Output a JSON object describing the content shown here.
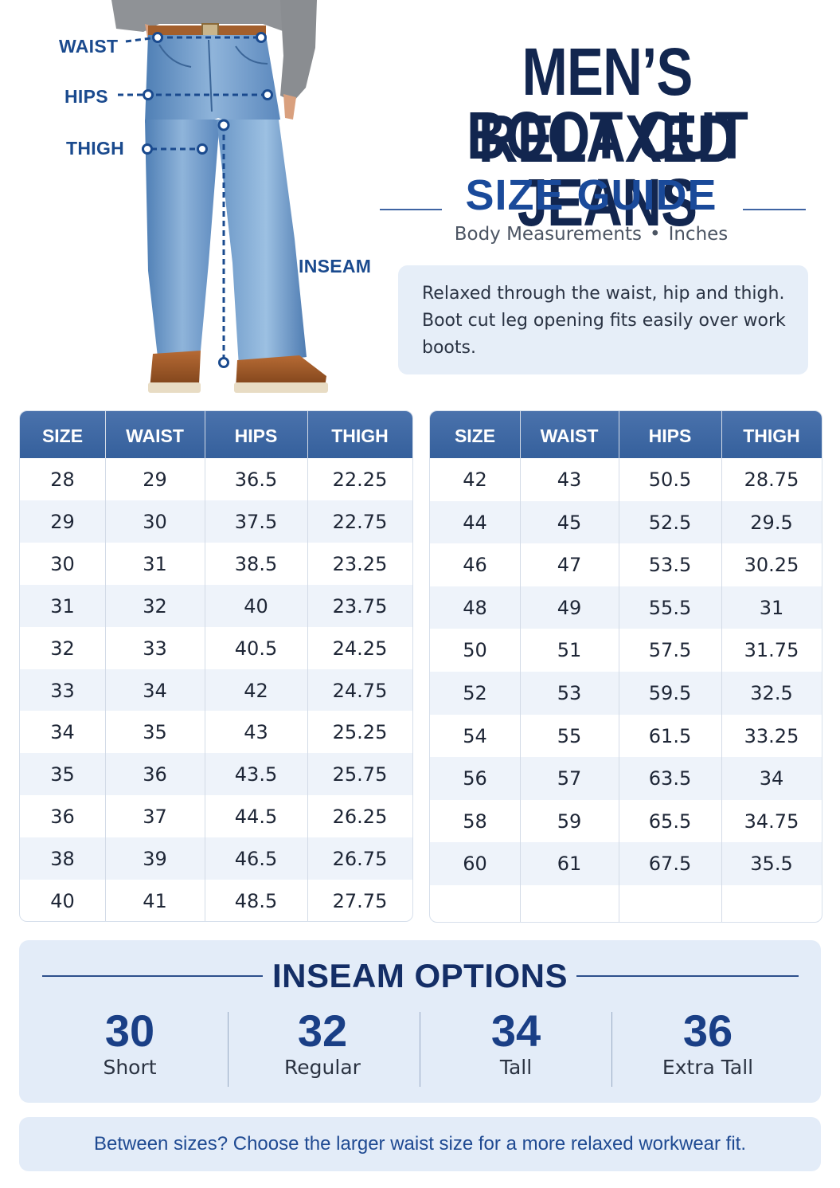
{
  "measure_labels": {
    "waist": "WAIST",
    "hips": "HIPS",
    "thigh": "THIGH",
    "inseam": "INSEAM"
  },
  "title": {
    "line1": "MEN’S RELAXED",
    "line2": "BOOT CUT JEANS",
    "subtitle": "SIZE GUIDE",
    "units_left": "Body Measurements",
    "units_sep": "•",
    "units_right": "Inches"
  },
  "note": "Relaxed through the waist, hip and thigh. Boot cut leg opening fits easily over work boots.",
  "table_headers": [
    "SIZE",
    "WAIST",
    "HIPS",
    "THIGH"
  ],
  "table_left": [
    [
      "28",
      "29",
      "36.5",
      "22.25"
    ],
    [
      "29",
      "30",
      "37.5",
      "22.75"
    ],
    [
      "30",
      "31",
      "38.5",
      "23.25"
    ],
    [
      "31",
      "32",
      "40",
      "23.75"
    ],
    [
      "32",
      "33",
      "40.5",
      "24.25"
    ],
    [
      "33",
      "34",
      "42",
      "24.75"
    ],
    [
      "34",
      "35",
      "43",
      "25.25"
    ],
    [
      "35",
      "36",
      "43.5",
      "25.75"
    ],
    [
      "36",
      "37",
      "44.5",
      "26.25"
    ],
    [
      "38",
      "39",
      "46.5",
      "26.75"
    ],
    [
      "40",
      "41",
      "48.5",
      "27.75"
    ]
  ],
  "table_right": [
    [
      "42",
      "43",
      "50.5",
      "28.75"
    ],
    [
      "44",
      "45",
      "52.5",
      "29.5"
    ],
    [
      "46",
      "47",
      "53.5",
      "30.25"
    ],
    [
      "48",
      "49",
      "55.5",
      "31"
    ],
    [
      "50",
      "51",
      "57.5",
      "31.75"
    ],
    [
      "52",
      "53",
      "59.5",
      "32.5"
    ],
    [
      "54",
      "55",
      "61.5",
      "33.25"
    ],
    [
      "56",
      "57",
      "63.5",
      "34"
    ],
    [
      "58",
      "59",
      "65.5",
      "34.75"
    ],
    [
      "60",
      "61",
      "67.5",
      "35.5"
    ]
  ],
  "inseam": {
    "title": "INSEAM OPTIONS",
    "options": [
      {
        "value": "30",
        "label": "Short"
      },
      {
        "value": "32",
        "label": "Regular"
      },
      {
        "value": "34",
        "label": "Tall"
      },
      {
        "value": "36",
        "label": "Extra Tall"
      }
    ]
  },
  "footer": "Between sizes? Choose the larger waist size for a more relaxed workwear fit.",
  "colors": {
    "navy": "#12264f",
    "accent_blue": "#1a4a9a",
    "header_blue": "#3d66a2",
    "panel_blue": "#e3ecf8",
    "denim": "#6f9bc9"
  }
}
